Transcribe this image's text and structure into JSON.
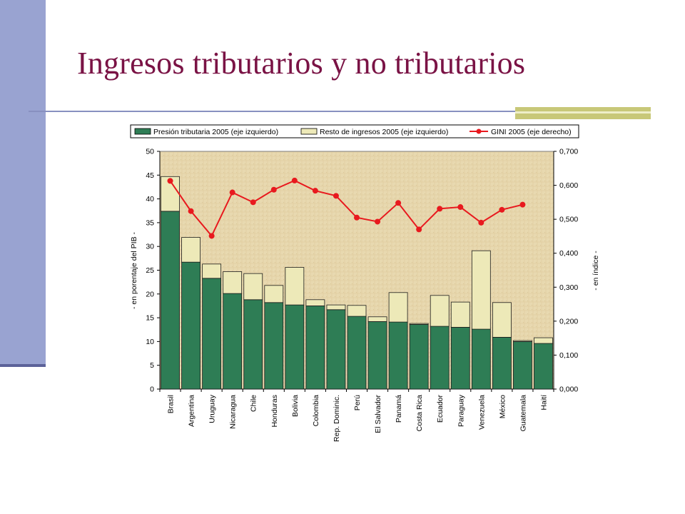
{
  "slide": {
    "title": "Ingresos tributarios y no tributarios",
    "colors": {
      "title": "#7a1345",
      "sidebar": "#99a3d1",
      "accent": "#c8c878"
    }
  },
  "chart_data": {
    "type": "bar",
    "stacked": true,
    "categories": [
      "Brasil",
      "Argentina",
      "Uruguay",
      "Nicaragua",
      "Chile",
      "Honduras",
      "Bolivia",
      "Colombia",
      "Rep. Dominic.",
      "Perú",
      "El Salvador",
      "Panamá",
      "Costa Rica",
      "Ecuador",
      "Paraguay",
      "Venezuela",
      "México",
      "Guatemala",
      "Haití"
    ],
    "series": [
      {
        "name": "Presión tributaria 2005 (eje izquierdo)",
        "kind": "bar",
        "axis": "left",
        "color": "#2e7d55",
        "values": [
          37.4,
          26.7,
          23.3,
          20.1,
          18.8,
          18.2,
          17.7,
          17.5,
          16.7,
          15.3,
          14.2,
          14.1,
          13.6,
          13.2,
          13.0,
          12.6,
          10.9,
          10.0,
          9.6
        ]
      },
      {
        "name": "Resto de ingresos 2005 (eje izquierdo)",
        "kind": "bar",
        "axis": "left",
        "color": "#ede9b8",
        "values": [
          7.3,
          5.2,
          3.0,
          4.6,
          5.5,
          3.6,
          7.9,
          1.3,
          1.0,
          2.3,
          1.0,
          6.2,
          0.2,
          6.5,
          5.3,
          16.5,
          7.3,
          0.2,
          1.2
        ]
      },
      {
        "name": "GINI 2005 (eje derecho)",
        "kind": "line",
        "axis": "right",
        "color": "#e8191e",
        "values": [
          0.613,
          0.524,
          0.451,
          0.579,
          0.55,
          0.587,
          0.614,
          0.584,
          0.569,
          0.505,
          0.493,
          0.548,
          0.47,
          0.531,
          0.536,
          0.49,
          0.528,
          0.543,
          null
        ]
      }
    ],
    "y_left": {
      "label": "- en porentaje del PIB -",
      "ylim": [
        0,
        50
      ],
      "ticks": [
        "0",
        "5",
        "10",
        "15",
        "20",
        "25",
        "30",
        "35",
        "40",
        "45",
        "50"
      ]
    },
    "y_right": {
      "label": "- en índice -",
      "ylim": [
        0,
        0.7
      ],
      "ticks": [
        "0,000",
        "0,100",
        "0,200",
        "0,300",
        "0,400",
        "0,500",
        "0,600",
        "0,700"
      ]
    },
    "legend_position": "top",
    "grid": false,
    "plot_background": "#e8d9b0"
  }
}
